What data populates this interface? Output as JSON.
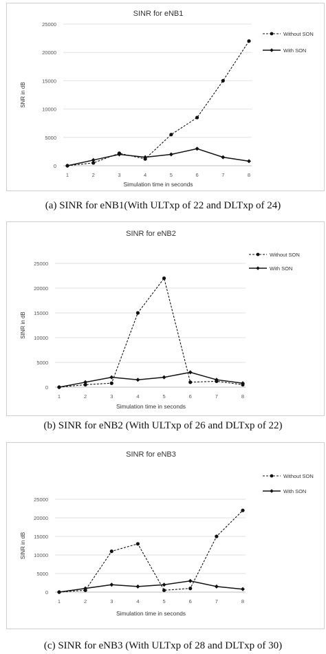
{
  "charts": [
    {
      "caption": "(a) SINR for eNB1(With ULTxp of 22 and DLTxp of 24)",
      "chart_data": {
        "type": "line",
        "title": "SINR for eNB1",
        "xlabel": "Simulation time in seconds",
        "ylabel": "SNR in dB",
        "categories": [
          1,
          2,
          3,
          4,
          5,
          6,
          7,
          8
        ],
        "ylim": [
          0,
          25000
        ],
        "yticks": [
          0,
          5000,
          10000,
          15000,
          20000,
          25000
        ],
        "grid": "horizontal",
        "legend": "right",
        "series": [
          {
            "name": "Without SON",
            "style": "dashed",
            "values": [
              0,
              500,
              2200,
              1200,
              5500,
              8500,
              15000,
              22000
            ]
          },
          {
            "name": "With SON",
            "style": "solid",
            "values": [
              0,
              1000,
              2000,
              1500,
              2000,
              3000,
              1500,
              800
            ]
          }
        ]
      }
    },
    {
      "caption": "(b) SINR for eNB2 (With ULTxp of 26 and DLTxp of 22)",
      "chart_data": {
        "type": "line",
        "title": "SINR for eNB2",
        "xlabel": "Simulation time in seconds",
        "ylabel": "SINR in dB",
        "categories": [
          1,
          2,
          3,
          4,
          5,
          6,
          7,
          8
        ],
        "ylim": [
          0,
          25000
        ],
        "yticks": [
          0,
          5000,
          10000,
          15000,
          20000,
          25000
        ],
        "grid": "horizontal",
        "legend": "right",
        "series": [
          {
            "name": "Without SON",
            "style": "dashed",
            "values": [
              0,
              500,
              800,
              15000,
              22000,
              1000,
              1200,
              500
            ]
          },
          {
            "name": "With SON",
            "style": "solid",
            "values": [
              0,
              1000,
              2000,
              1500,
              2000,
              3000,
              1500,
              800
            ]
          }
        ]
      }
    },
    {
      "caption": "(c) SINR for eNB3 (With ULTxp of 28 and DLTxp of 30)",
      "chart_data": {
        "type": "line",
        "title": "SINR for eNB3",
        "xlabel": "Simulation time in seconds",
        "ylabel": "SINR in dB",
        "categories": [
          1,
          2,
          3,
          4,
          5,
          6,
          7,
          8
        ],
        "ylim": [
          0,
          25000
        ],
        "yticks": [
          0,
          5000,
          10000,
          15000,
          20000,
          25000
        ],
        "grid": "horizontal",
        "legend": "top-right",
        "series": [
          {
            "name": "Without SON",
            "style": "dashed",
            "values": [
              0,
              500,
              11000,
              13000,
              500,
              1000,
              15000,
              22000
            ]
          },
          {
            "name": "With SON",
            "style": "solid",
            "values": [
              0,
              1000,
              2000,
              1500,
              2000,
              3000,
              1500,
              800
            ]
          }
        ]
      }
    }
  ]
}
